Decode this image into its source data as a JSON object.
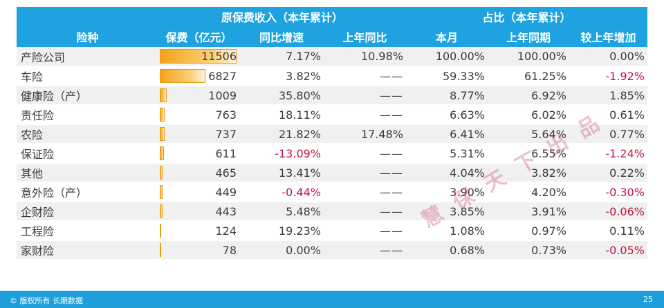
{
  "header": {
    "group_premium": "原保费收入（本年累计）",
    "group_share": "占比（本年累计）",
    "col_type": "险种",
    "col_premium": "保费（亿元）",
    "col_yoy": "同比增速",
    "col_last_yoy": "上年同比",
    "col_month": "本月",
    "col_last_period": "上年同期",
    "col_change": "较上年增加"
  },
  "rows": [
    {
      "name": "产险公司",
      "premium": "11506",
      "premium_value": 11506,
      "yoy": "7.17%",
      "last_yoy": "10.98%",
      "month": "100.00%",
      "last_period": "100.00%",
      "change": "0.00%"
    },
    {
      "name": "车险",
      "premium": "6827",
      "premium_value": 6827,
      "yoy": "3.82%",
      "last_yoy": "——",
      "month": "59.33%",
      "last_period": "61.25%",
      "change": "-1.92%"
    },
    {
      "name": "健康险（产）",
      "premium": "1009",
      "premium_value": 1009,
      "yoy": "35.80%",
      "last_yoy": "——",
      "month": "8.77%",
      "last_period": "6.92%",
      "change": "1.85%"
    },
    {
      "name": "责任险",
      "premium": "763",
      "premium_value": 763,
      "yoy": "18.11%",
      "last_yoy": "——",
      "month": "6.63%",
      "last_period": "6.02%",
      "change": "0.61%"
    },
    {
      "name": "农险",
      "premium": "737",
      "premium_value": 737,
      "yoy": "21.82%",
      "last_yoy": "17.48%",
      "month": "6.41%",
      "last_period": "5.64%",
      "change": "0.77%"
    },
    {
      "name": "保证险",
      "premium": "611",
      "premium_value": 611,
      "yoy": "-13.09%",
      "last_yoy": "——",
      "month": "5.31%",
      "last_period": "6.55%",
      "change": "-1.24%"
    },
    {
      "name": "其他",
      "premium": "465",
      "premium_value": 465,
      "yoy": "13.41%",
      "last_yoy": "——",
      "month": "4.04%",
      "last_period": "3.82%",
      "change": "0.22%"
    },
    {
      "name": "意外险（产）",
      "premium": "449",
      "premium_value": 449,
      "yoy": "-0.44%",
      "last_yoy": "——",
      "month": "3.90%",
      "last_period": "4.20%",
      "change": "-0.30%"
    },
    {
      "name": "企财险",
      "premium": "443",
      "premium_value": 443,
      "yoy": "5.48%",
      "last_yoy": "——",
      "month": "3.85%",
      "last_period": "3.91%",
      "change": "-0.06%"
    },
    {
      "name": "工程险",
      "premium": "124",
      "premium_value": 124,
      "yoy": "19.23%",
      "last_yoy": "——",
      "month": "1.08%",
      "last_period": "0.97%",
      "change": "0.11%"
    },
    {
      "name": "家财险",
      "premium": "78",
      "premium_value": 78,
      "yoy": "0.00%",
      "last_yoy": "——",
      "month": "0.68%",
      "last_period": "0.73%",
      "change": "-0.05%"
    }
  ],
  "watermark": "慧保天下出品",
  "footer": {
    "copyright": "© 版权所有 长期数据",
    "page": "25"
  },
  "colors": {
    "header_bg": "#1fa3e0",
    "negative": "#c0143c",
    "bar": "#f4a21a"
  }
}
